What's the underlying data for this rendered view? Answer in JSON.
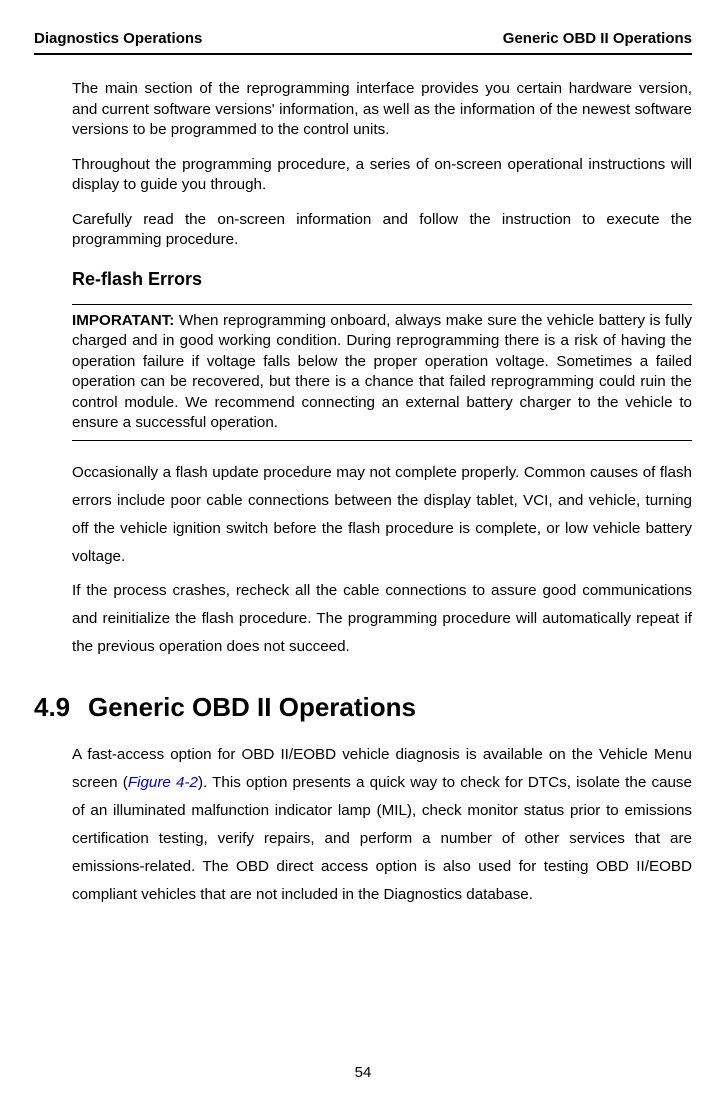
{
  "header": {
    "left": "Diagnostics Operations",
    "right": "Generic OBD II Operations"
  },
  "paragraphs": {
    "p1": "The main section of the reprogramming interface provides you certain hardware version, and current software versions' information, as well as the information of the newest software versions to be programmed to the control units.",
    "p2": "Throughout the programming procedure, a series of on-screen operational instructions will display to guide you through.",
    "p3": "Carefully read the on-screen information and follow the instruction to execute the programming procedure."
  },
  "subheading": "Re-flash Errors",
  "box": {
    "label": "IMPORATANT:",
    "text": " When reprogramming onboard, always make sure the vehicle battery is fully charged and in good working condition. During reprogramming there is a risk of having the operation failure if voltage falls below the proper operation voltage. Sometimes a failed operation can be recovered, but there is a chance that failed reprogramming could ruin the control module. We recommend connecting an external battery charger to the vehicle to ensure a successful operation."
  },
  "afterbox": {
    "p1": "Occasionally a flash update procedure may not complete properly. Common causes of flash errors include poor cable connections between the display tablet, VCI, and vehicle, turning off the vehicle ignition switch before the flash procedure is complete, or low vehicle battery voltage.",
    "p2": "If the process crashes, recheck all the cable connections to assure good communications and reinitialize the flash procedure. The programming procedure will automatically repeat if the previous operation does not succeed."
  },
  "section": {
    "num": "4.9",
    "title": "Generic OBD II Operations",
    "body_pre": "A fast-access option for OBD II/EOBD vehicle diagnosis is available on the Vehicle Menu screen (",
    "figref": "Figure 4-2",
    "body_post": "). This option presents a quick way to check for DTCs, isolate the cause of an illuminated malfunction indicator lamp (MIL), check monitor status prior to emissions certification testing, verify repairs, and perform a number of other services that are emissions-related. The OBD direct access option is also used for testing OBD II/EOBD compliant vehicles that are not included in the Diagnostics database."
  },
  "pageNumber": "54"
}
